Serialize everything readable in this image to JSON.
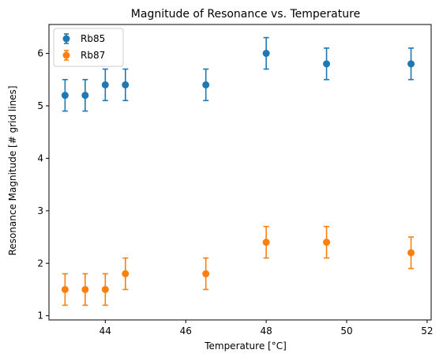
{
  "chart_data": {
    "type": "scatter",
    "title": "Magnitude of Resonance vs. Temperature",
    "xlabel": "Temperature [$^\\circ$C]",
    "xlabel_display": "Temperature [°C]",
    "ylabel": "Resonance Magnitude [# grid lines]",
    "xlim": [
      42.6,
      52.1
    ],
    "ylim": [
      0.92,
      6.55
    ],
    "xticks": [
      44,
      46,
      48,
      50,
      52
    ],
    "yticks": [
      1,
      2,
      3,
      4,
      5,
      6
    ],
    "grid": false,
    "legend_position": "top-left",
    "series": [
      {
        "name": "Rb85",
        "color": "#1f77b4",
        "x": [
          43.0,
          43.5,
          44.0,
          44.5,
          46.5,
          48.0,
          49.5,
          51.6
        ],
        "y": [
          5.2,
          5.2,
          5.4,
          5.4,
          5.4,
          6.0,
          5.8,
          5.8
        ],
        "yerr": [
          0.3,
          0.3,
          0.3,
          0.3,
          0.3,
          0.3,
          0.3,
          0.3
        ]
      },
      {
        "name": "Rb87",
        "color": "#ff7f0e",
        "x": [
          43.0,
          43.5,
          44.0,
          44.5,
          46.5,
          48.0,
          49.5,
          51.6
        ],
        "y": [
          1.5,
          1.5,
          1.5,
          1.8,
          1.8,
          2.4,
          2.4,
          2.2
        ],
        "yerr": [
          0.3,
          0.3,
          0.3,
          0.3,
          0.3,
          0.3,
          0.3,
          0.3
        ]
      }
    ]
  }
}
